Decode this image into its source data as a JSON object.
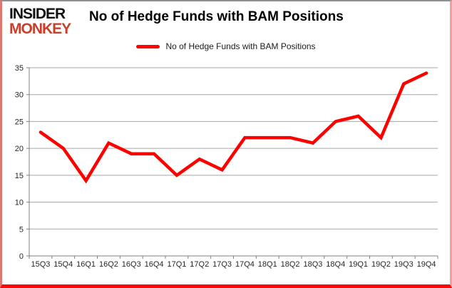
{
  "logo": {
    "line1": "INSIDER",
    "line2": "MONKEY"
  },
  "header": {
    "title": "No of Hedge Funds with BAM Positions"
  },
  "legend": {
    "label": "No of Hedge Funds with BAM Positions",
    "color": "#ff0000"
  },
  "colors": {
    "series_line": "#ff0000",
    "gridline": "#a6a6a6",
    "axis": "#808080",
    "tick_text": "#262626",
    "logo_red": "#c7402e",
    "card_border_bottom": "#fb0909"
  },
  "chart_data": {
    "type": "line",
    "title": "No of Hedge Funds with BAM Positions",
    "categories": [
      "15Q3",
      "15Q4",
      "16Q1",
      "16Q2",
      "16Q3",
      "16Q4",
      "17Q1",
      "17Q2",
      "17Q3",
      "17Q4",
      "18Q1",
      "18Q2",
      "18Q3",
      "18Q4",
      "19Q1",
      "19Q2",
      "19Q3",
      "19Q4"
    ],
    "series": [
      {
        "name": "No of Hedge Funds with BAM Positions",
        "color": "#ff0000",
        "values": [
          23,
          20,
          14,
          21,
          19,
          19,
          15,
          18,
          16,
          22,
          22,
          22,
          21,
          25,
          26,
          22,
          32,
          34
        ]
      }
    ],
    "xlabel": "",
    "ylabel": "",
    "ylim": [
      0,
      35
    ],
    "y_ticks": [
      0,
      5,
      10,
      15,
      20,
      25,
      30,
      35
    ],
    "grid": true,
    "legend_position": "top-center"
  }
}
